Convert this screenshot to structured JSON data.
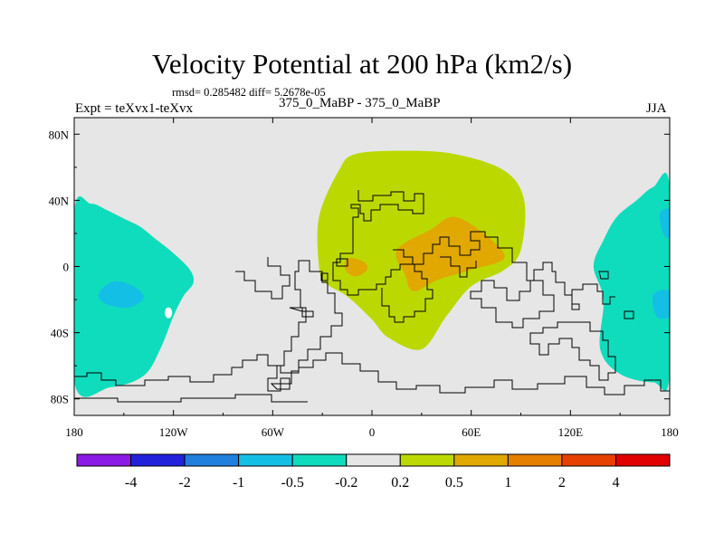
{
  "title": "Velocity Potential at 200 hPa (km2/s)",
  "stats": "rmsd= 0.285482 diff= 5.2678e-05",
  "left_label": "Expt = teXvx1-teXvx",
  "center_label": "375_0_MaBP - 375_0_MaBP",
  "right_label": "JJA",
  "chart_data": {
    "type": "heatmap",
    "title": "Velocity Potential at 200 hPa (km2/s)",
    "projection": "cylindrical-equidistant",
    "x_range": [
      -180,
      180
    ],
    "y_range": [
      -90,
      90
    ],
    "x_ticks": [
      {
        "value": -180,
        "label": "180"
      },
      {
        "value": -120,
        "label": "120W"
      },
      {
        "value": -60,
        "label": "60W"
      },
      {
        "value": 0,
        "label": "0"
      },
      {
        "value": 60,
        "label": "60E"
      },
      {
        "value": 120,
        "label": "120E"
      },
      {
        "value": 180,
        "label": "180"
      }
    ],
    "y_ticks": [
      {
        "value": 80,
        "label": "80N"
      },
      {
        "value": 40,
        "label": "40N"
      },
      {
        "value": 0,
        "label": "0"
      },
      {
        "value": -40,
        "label": "40S"
      },
      {
        "value": -80,
        "label": "80S"
      }
    ],
    "colorbar": {
      "colors": [
        "#8c1ae6",
        "#2222dd",
        "#1f7fdd",
        "#14bfe6",
        "#0fdcbc",
        "#e6e6e6",
        "#bbd900",
        "#e0a800",
        "#e67e00",
        "#e64100",
        "#e00000"
      ],
      "labels": [
        "-4",
        "-2",
        "-1",
        "-0.5",
        "-0.2",
        "0.2",
        "0.5",
        "1",
        "2",
        "4"
      ],
      "background_color": "#e6e6e6"
    },
    "regions": [
      {
        "name": "west-pacific-cyan",
        "level": "-0.5 to -0.2",
        "color": "#0fdcbc",
        "outline": [
          [
            -180,
            33
          ],
          [
            -170,
            38
          ],
          [
            -160,
            34
          ],
          [
            -148,
            28
          ],
          [
            -140,
            24
          ],
          [
            -130,
            16
          ],
          [
            -120,
            8
          ],
          [
            -110,
            -2
          ],
          [
            -108,
            -10
          ],
          [
            -114,
            -18
          ],
          [
            -120,
            -30
          ],
          [
            -128,
            -50
          ],
          [
            -138,
            -66
          ],
          [
            -158,
            -73
          ],
          [
            -180,
            -70
          ]
        ]
      },
      {
        "name": "west-pacific-blue-core",
        "level": "-1 to -0.5",
        "color": "#14bfe6",
        "outline": [
          [
            -165,
            -16
          ],
          [
            -156,
            -9
          ],
          [
            -144,
            -12
          ],
          [
            -138,
            -19
          ],
          [
            -148,
            -25
          ],
          [
            -162,
            -22
          ]
        ]
      },
      {
        "name": "east-pacific-cyan",
        "level": "-0.5 to -0.2",
        "color": "#0fdcbc",
        "outline": [
          [
            180,
            48
          ],
          [
            170,
            48
          ],
          [
            160,
            40
          ],
          [
            148,
            30
          ],
          [
            140,
            16
          ],
          [
            134,
            0
          ],
          [
            140,
            -20
          ],
          [
            138,
            -50
          ],
          [
            150,
            -65
          ],
          [
            170,
            -70
          ],
          [
            180,
            -65
          ]
        ]
      },
      {
        "name": "east-pacific-blue-a",
        "level": "-1 to -0.5",
        "color": "#14bfe6",
        "outline": [
          [
            180,
            34
          ],
          [
            174,
            32
          ],
          [
            176,
            20
          ],
          [
            180,
            18
          ]
        ]
      },
      {
        "name": "east-pacific-blue-b",
        "level": "-1 to -0.5",
        "color": "#14bfe6",
        "outline": [
          [
            180,
            -15
          ],
          [
            170,
            -17
          ],
          [
            172,
            -30
          ],
          [
            180,
            -30
          ]
        ]
      },
      {
        "name": "africa-asia-green",
        "level": "0.2 to 0.5",
        "color": "#bbd900",
        "outline": [
          [
            -20,
            58
          ],
          [
            -10,
            68
          ],
          [
            20,
            70
          ],
          [
            50,
            68
          ],
          [
            80,
            58
          ],
          [
            92,
            40
          ],
          [
            90,
            10
          ],
          [
            80,
            -2
          ],
          [
            60,
            -12
          ],
          [
            45,
            -30
          ],
          [
            30,
            -50
          ],
          [
            10,
            -43
          ],
          [
            0,
            -32
          ],
          [
            -15,
            -18
          ],
          [
            -28,
            -10
          ],
          [
            -32,
            0
          ],
          [
            -32,
            30
          ]
        ]
      },
      {
        "name": "africa-asia-orange",
        "level": "0.5 to 1",
        "color": "#e0a800",
        "outline": [
          [
            15,
            10
          ],
          [
            35,
            22
          ],
          [
            50,
            30
          ],
          [
            70,
            18
          ],
          [
            80,
            5
          ],
          [
            60,
            -2
          ],
          [
            40,
            -8
          ],
          [
            25,
            -15
          ],
          [
            20,
            -5
          ]
        ]
      },
      {
        "name": "west-africa-orange",
        "level": "0.5 to 1",
        "color": "#e0a800",
        "outline": [
          [
            -15,
            5
          ],
          [
            -5,
            3
          ],
          [
            -3,
            -2
          ],
          [
            -10,
            -6
          ],
          [
            -16,
            -2
          ]
        ]
      }
    ]
  }
}
